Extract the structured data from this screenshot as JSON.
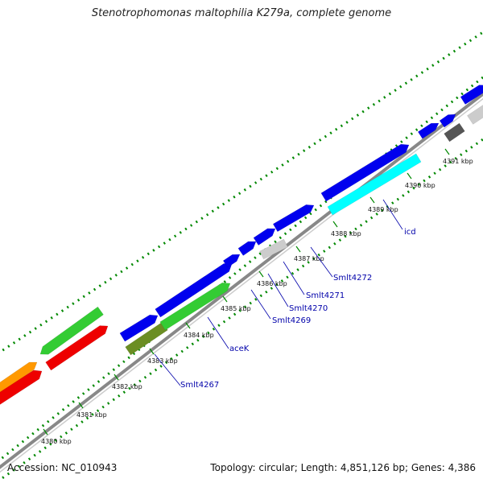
{
  "title": "Stenotrophomonas maltophilia K279a, complete genome",
  "footer": {
    "accession": "Accession: NC_010943",
    "topology": "Topology: circular; Length: 4,851,126 bp; Genes: 4,386"
  },
  "kbp_ticks": [
    "4380 kbp",
    "4381 kbp",
    "4382 kbp",
    "4383 kbp",
    "4384 kbp",
    "4385 kbp",
    "4386 kbp",
    "4387 kbp",
    "4388 kbp",
    "4389 kbp",
    "4390 kbp",
    "4391 kbp"
  ],
  "gene_labels": [
    "Smlt4267",
    "aceK",
    "Smlt4269",
    "Smlt4270",
    "Smlt4271",
    "Smlt4272",
    "icd"
  ],
  "colors": {
    "backbone": "#888888",
    "forward_cds": "#0000ee",
    "reverse_cds": "#ee0000",
    "rna_green": "#33cc33",
    "orange": "#ff9900",
    "cyan": "#00ffff",
    "olive": "#6b8e23",
    "grey_light": "#cccccc",
    "grey_dark": "#555555",
    "tick_dots": "#008800",
    "label_line": "#0000aa"
  }
}
